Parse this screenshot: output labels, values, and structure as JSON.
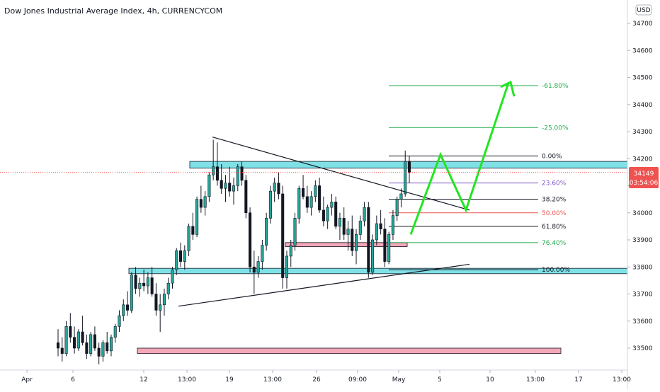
{
  "chart_data": {
    "type": "candlestick",
    "title": "Dow Jones Industrial Average Index, 4h, CURRENCYCOM",
    "currency_label": "USD",
    "ylim": [
      33420,
      34760
    ],
    "y_ticks": [
      33500,
      33600,
      33700,
      33800,
      33900,
      34000,
      34100,
      34200,
      34300,
      34400,
      34500,
      34600,
      34700
    ],
    "x_tick_labels": [
      "Apr",
      "6",
      "12",
      "13:00",
      "19",
      "13:00",
      "26",
      "09:00",
      "May",
      "5",
      "10",
      "13:00",
      "17",
      "13:00"
    ],
    "last_price": {
      "value": "34149",
      "countdown": "03:54:06"
    },
    "fib_levels": [
      {
        "label": "-61.80%",
        "value": 34470,
        "color": "#22ab4b"
      },
      {
        "label": "-25.00%",
        "value": 34315,
        "color": "#22ab4b"
      },
      {
        "label": "0.00%",
        "value": 34210,
        "color": "#131722"
      },
      {
        "label": "23.60%",
        "value": 34110,
        "color": "#7e57c2"
      },
      {
        "label": "38.20%",
        "value": 34050,
        "color": "#131722"
      },
      {
        "label": "50.00%",
        "value": 34000,
        "color": "#ef5350"
      },
      {
        "label": "61.80%",
        "value": 33950,
        "color": "#131722"
      },
      {
        "label": "76.40%",
        "value": 33890,
        "color": "#22ab4b"
      },
      {
        "label": "100.00%",
        "value": 33790,
        "color": "#131722"
      }
    ],
    "zones": [
      {
        "name": "resistance",
        "from": 34165,
        "to": 34190,
        "color": "#7fe0e6"
      },
      {
        "name": "mid",
        "from": 33875,
        "to": 33890,
        "color": "#f4a7b9"
      },
      {
        "name": "support",
        "from": 33775,
        "to": 33795,
        "color": "#7fe0e6"
      },
      {
        "name": "lower",
        "from": 33480,
        "to": 33500,
        "color": "#f4a7b9"
      }
    ],
    "candles": [
      [
        33520,
        33570,
        33470,
        33500
      ],
      [
        33500,
        33540,
        33450,
        33480
      ],
      [
        33480,
        33600,
        33470,
        33580
      ],
      [
        33580,
        33630,
        33520,
        33540
      ],
      [
        33540,
        33580,
        33480,
        33500
      ],
      [
        33500,
        33570,
        33490,
        33560
      ],
      [
        33560,
        33620,
        33510,
        33520
      ],
      [
        33520,
        33550,
        33460,
        33480
      ],
      [
        33480,
        33560,
        33470,
        33550
      ],
      [
        33550,
        33580,
        33490,
        33500
      ],
      [
        33500,
        33520,
        33440,
        33470
      ],
      [
        33470,
        33530,
        33450,
        33520
      ],
      [
        33520,
        33560,
        33480,
        33490
      ],
      [
        33490,
        33550,
        33470,
        33540
      ],
      [
        33540,
        33590,
        33520,
        33580
      ],
      [
        33580,
        33640,
        33560,
        33620
      ],
      [
        33620,
        33680,
        33600,
        33660
      ],
      [
        33660,
        33710,
        33620,
        33640
      ],
      [
        33640,
        33780,
        33630,
        33770
      ],
      [
        33770,
        33800,
        33700,
        33720
      ],
      [
        33720,
        33760,
        33690,
        33740
      ],
      [
        33740,
        33790,
        33710,
        33730
      ],
      [
        33730,
        33780,
        33700,
        33760
      ],
      [
        33760,
        33800,
        33690,
        33700
      ],
      [
        33700,
        33740,
        33620,
        33640
      ],
      [
        33640,
        33700,
        33560,
        33660
      ],
      [
        33660,
        33720,
        33620,
        33700
      ],
      [
        33700,
        33760,
        33680,
        33740
      ],
      [
        33740,
        33800,
        33720,
        33790
      ],
      [
        33790,
        33870,
        33770,
        33860
      ],
      [
        33860,
        33890,
        33800,
        33820
      ],
      [
        33820,
        33880,
        33790,
        33860
      ],
      [
        33860,
        33960,
        33840,
        33950
      ],
      [
        33950,
        34000,
        33900,
        33920
      ],
      [
        33920,
        34060,
        33910,
        34050
      ],
      [
        34050,
        34100,
        34000,
        34020
      ],
      [
        34020,
        34080,
        33990,
        34060
      ],
      [
        34060,
        34150,
        34040,
        34140
      ],
      [
        34140,
        34270,
        34120,
        34170
      ],
      [
        34170,
        34260,
        34100,
        34120
      ],
      [
        34120,
        34180,
        34070,
        34090
      ],
      [
        34090,
        34140,
        34040,
        34110
      ],
      [
        34110,
        34170,
        34060,
        34080
      ],
      [
        34080,
        34130,
        34030,
        34100
      ],
      [
        34100,
        34180,
        34080,
        34170
      ],
      [
        34170,
        34190,
        34100,
        34120
      ],
      [
        34120,
        34140,
        33980,
        34000
      ],
      [
        34000,
        34020,
        33780,
        33800
      ],
      [
        33800,
        33860,
        33700,
        33780
      ],
      [
        33780,
        33840,
        33760,
        33820
      ],
      [
        33820,
        33900,
        33790,
        33880
      ],
      [
        33880,
        34000,
        33860,
        33980
      ],
      [
        33980,
        34100,
        33960,
        34080
      ],
      [
        34080,
        34130,
        34040,
        34110
      ],
      [
        34110,
        34150,
        34050,
        34070
      ],
      [
        34070,
        34100,
        33720,
        33760
      ],
      [
        33760,
        33860,
        33720,
        33840
      ],
      [
        33840,
        33900,
        33800,
        33880
      ],
      [
        33880,
        34000,
        33860,
        33980
      ],
      [
        33980,
        34100,
        33960,
        34090
      ],
      [
        34090,
        34140,
        34050,
        34060
      ],
      [
        34060,
        34100,
        34000,
        34020
      ],
      [
        34020,
        34080,
        33990,
        34060
      ],
      [
        34060,
        34120,
        34040,
        34100
      ],
      [
        34100,
        34130,
        34000,
        34010
      ],
      [
        34010,
        34060,
        33950,
        33970
      ],
      [
        33970,
        34030,
        33940,
        34020
      ],
      [
        34020,
        34070,
        33990,
        34040
      ],
      [
        34040,
        34060,
        33940,
        33950
      ],
      [
        33950,
        34000,
        33900,
        33980
      ],
      [
        33980,
        34020,
        33900,
        33920
      ],
      [
        33920,
        33970,
        33860,
        33940
      ],
      [
        33940,
        33990,
        33840,
        33860
      ],
      [
        33860,
        33940,
        33810,
        33920
      ],
      [
        33920,
        33990,
        33900,
        33970
      ],
      [
        33970,
        34040,
        33950,
        34020
      ],
      [
        34020,
        34040,
        33760,
        33780
      ],
      [
        33780,
        33920,
        33770,
        33900
      ],
      [
        33900,
        33990,
        33880,
        33960
      ],
      [
        33960,
        34010,
        33920,
        33940
      ],
      [
        33940,
        33980,
        33800,
        33820
      ],
      [
        33820,
        33930,
        33810,
        33920
      ],
      [
        33920,
        34010,
        33900,
        33990
      ],
      [
        33990,
        34060,
        33970,
        34050
      ],
      [
        34050,
        34090,
        34020,
        34070
      ],
      [
        34070,
        34230,
        34060,
        34190
      ],
      [
        34190,
        34210,
        34110,
        34149
      ]
    ]
  }
}
